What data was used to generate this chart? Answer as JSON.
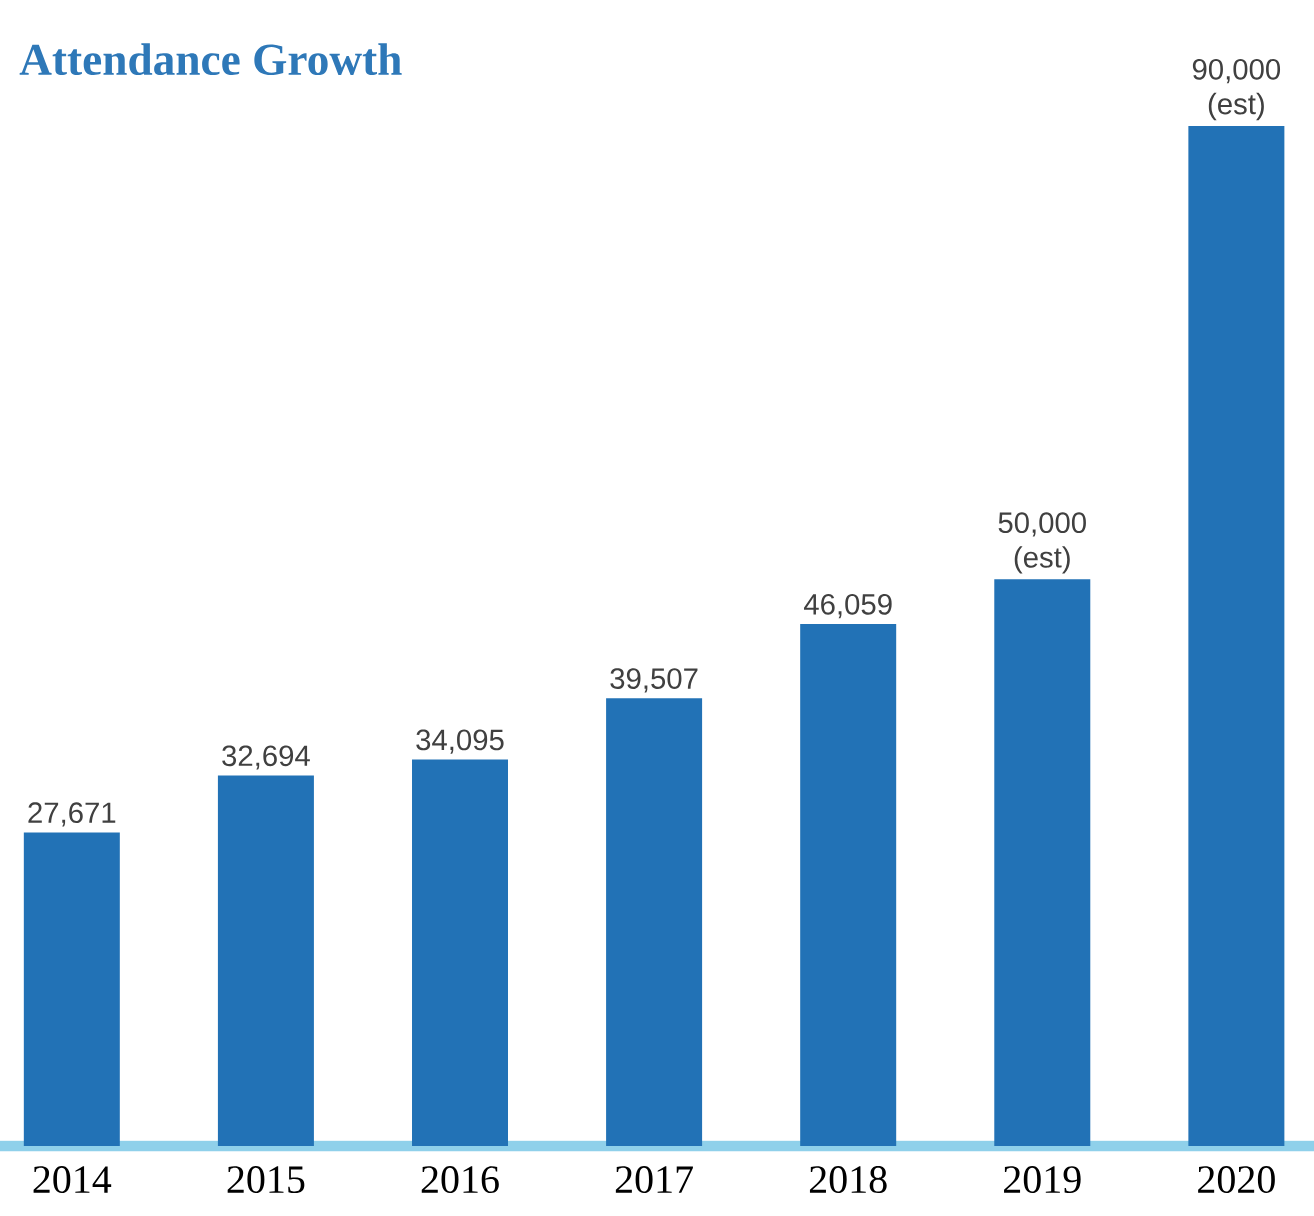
{
  "chart_data": {
    "type": "bar",
    "title": "Attendance Growth",
    "categories": [
      "2014",
      "2015",
      "2016",
      "2017",
      "2018",
      "2019",
      "2020"
    ],
    "values": [
      27671,
      32694,
      34095,
      39507,
      46059,
      50000,
      90000
    ],
    "value_labels": [
      "27,671",
      "32,694",
      "34,095",
      "39,507",
      "46,059",
      "50,000 (est)",
      "90,000 (est)"
    ],
    "color": "#2272b6"
  }
}
